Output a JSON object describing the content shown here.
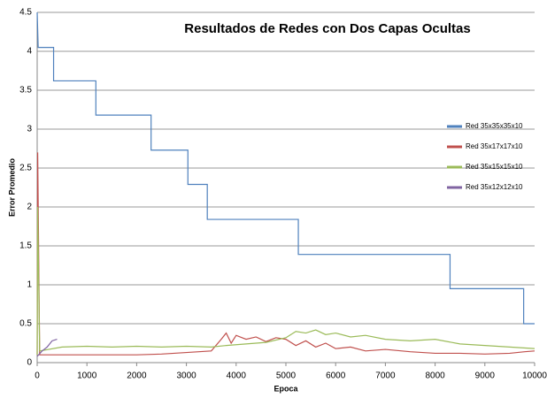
{
  "chart_data": {
    "type": "line",
    "title": "Resultados de Redes con Dos Capas Ocultas",
    "xlabel": "Epoca",
    "ylabel": "Error Promedio",
    "xlim": [
      0,
      10000
    ],
    "xticks": [
      0,
      1000,
      2000,
      3000,
      4000,
      5000,
      6000,
      7000,
      8000,
      9000,
      10000
    ],
    "ylim": [
      0,
      4.5
    ],
    "yticks": [
      0,
      0.5,
      1,
      1.5,
      2,
      2.5,
      3,
      3.5,
      4,
      4.5
    ],
    "grid": true,
    "legend": "right",
    "series": [
      {
        "name": "Red 35x35x35x10",
        "color": "#4f81bd",
        "x": [
          0,
          20,
          330,
          330,
          1180,
          1180,
          2290,
          2290,
          3030,
          3030,
          3420,
          3420,
          5250,
          5250,
          8300,
          8300,
          9780,
          9780,
          10000
        ],
        "values": [
          4.5,
          4.05,
          4.05,
          3.62,
          3.62,
          3.18,
          3.18,
          2.73,
          2.73,
          2.29,
          2.29,
          1.84,
          1.84,
          1.39,
          1.39,
          0.95,
          0.95,
          0.5,
          0.5
        ]
      },
      {
        "name": "Red 35x17x17x10",
        "color": "#c0504d",
        "x": [
          0,
          10,
          50,
          500,
          1000,
          1500,
          2000,
          2500,
          3000,
          3500,
          3700,
          3800,
          3900,
          4000,
          4200,
          4400,
          4600,
          4800,
          5000,
          5200,
          5400,
          5600,
          5800,
          6000,
          6300,
          6600,
          7000,
          7500,
          8000,
          8500,
          9000,
          9500,
          9800,
          10000
        ],
        "values": [
          0.1,
          2.7,
          0.1,
          0.1,
          0.1,
          0.1,
          0.1,
          0.11,
          0.13,
          0.15,
          0.3,
          0.38,
          0.25,
          0.35,
          0.3,
          0.33,
          0.27,
          0.32,
          0.3,
          0.22,
          0.28,
          0.2,
          0.25,
          0.18,
          0.2,
          0.15,
          0.17,
          0.14,
          0.12,
          0.12,
          0.11,
          0.12,
          0.14,
          0.15
        ]
      },
      {
        "name": "Red 35x15x15x10",
        "color": "#9bbb59",
        "x": [
          0,
          10,
          50,
          500,
          1000,
          1500,
          2000,
          2500,
          3000,
          3500,
          3800,
          4200,
          4600,
          5000,
          5200,
          5400,
          5600,
          5800,
          6000,
          6300,
          6600,
          7000,
          7500,
          8000,
          8500,
          9000,
          9500,
          10000
        ],
        "values": [
          0.1,
          2.0,
          0.15,
          0.2,
          0.21,
          0.2,
          0.21,
          0.2,
          0.21,
          0.2,
          0.22,
          0.24,
          0.26,
          0.32,
          0.4,
          0.38,
          0.42,
          0.36,
          0.38,
          0.33,
          0.35,
          0.3,
          0.28,
          0.3,
          0.24,
          0.22,
          0.2,
          0.18
        ]
      },
      {
        "name": "Red 35x12x12x10",
        "color": "#8064a2",
        "x": [
          0,
          100,
          200,
          300,
          400
        ],
        "values": [
          0.08,
          0.15,
          0.2,
          0.28,
          0.3
        ]
      }
    ]
  }
}
